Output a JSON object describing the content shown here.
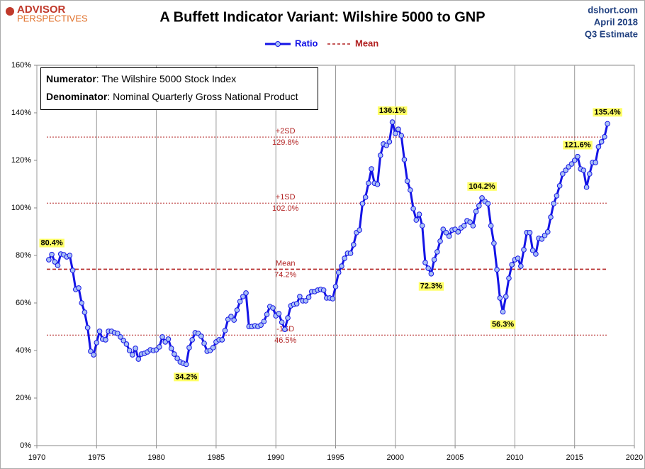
{
  "chart_data": {
    "type": "line",
    "title": "A Buffett Indicator Variant: Wilshire 5000 to GNP",
    "logo": [
      "ADVISOR",
      "PERSPECTIVES"
    ],
    "source": [
      "dshort.com",
      "April 2018",
      "Q3 Estimate"
    ],
    "notes": [
      {
        "term": "Numerator",
        "text": ": The Wilshire 5000 Stock Index"
      },
      {
        "term": "Denominator",
        "text": ": Nominal Quarterly Gross National Product"
      }
    ],
    "xlim": [
      1970,
      2020
    ],
    "xticks": [
      1970,
      1975,
      1980,
      1985,
      1990,
      1995,
      2000,
      2005,
      2010,
      2015,
      2020
    ],
    "ylim": [
      0,
      160
    ],
    "yticks": [
      {
        "value": 0,
        "label": "0%"
      },
      {
        "value": 20,
        "label": "20%"
      },
      {
        "value": 40,
        "label": "40%"
      },
      {
        "value": 60,
        "label": "60%"
      },
      {
        "value": 80,
        "label": "80%"
      },
      {
        "value": 100,
        "label": "100%"
      },
      {
        "value": 120,
        "label": "120%"
      },
      {
        "value": 140,
        "label": "140%"
      },
      {
        "value": 160,
        "label": "160%"
      }
    ],
    "grid": "x",
    "x": [
      1971,
      1971.25,
      1971.5,
      1971.75,
      1972,
      1972.25,
      1972.5,
      1972.75,
      1973,
      1973.25,
      1973.5,
      1973.75,
      1974,
      1974.25,
      1974.5,
      1974.75,
      1975,
      1975.25,
      1975.5,
      1975.75,
      1976,
      1976.25,
      1976.5,
      1976.75,
      1977,
      1977.25,
      1977.5,
      1977.75,
      1978,
      1978.25,
      1978.5,
      1978.75,
      1979,
      1979.25,
      1979.5,
      1979.75,
      1980,
      1980.25,
      1980.5,
      1980.75,
      1981,
      1981.25,
      1981.5,
      1981.75,
      1982,
      1982.25,
      1982.5,
      1982.75,
      1983,
      1983.25,
      1983.5,
      1983.75,
      1984,
      1984.25,
      1984.5,
      1984.75,
      1985,
      1985.25,
      1985.5,
      1985.75,
      1986,
      1986.25,
      1986.5,
      1986.75,
      1987,
      1987.25,
      1987.5,
      1987.75,
      1988,
      1988.25,
      1988.5,
      1988.75,
      1989,
      1989.25,
      1989.5,
      1989.75,
      1990,
      1990.25,
      1990.5,
      1990.75,
      1991,
      1991.25,
      1991.5,
      1991.75,
      1992,
      1992.25,
      1992.5,
      1992.75,
      1993,
      1993.25,
      1993.5,
      1993.75,
      1994,
      1994.25,
      1994.5,
      1994.75,
      1995,
      1995.25,
      1995.5,
      1995.75,
      1996,
      1996.25,
      1996.5,
      1996.75,
      1997,
      1997.25,
      1997.5,
      1997.75,
      1998,
      1998.25,
      1998.5,
      1998.75,
      1999,
      1999.25,
      1999.5,
      1999.75,
      2000,
      2000.25,
      2000.5,
      2000.75,
      2001,
      2001.25,
      2001.5,
      2001.75,
      2002,
      2002.25,
      2002.5,
      2002.75,
      2003,
      2003.25,
      2003.5,
      2003.75,
      2004,
      2004.25,
      2004.5,
      2004.75,
      2005,
      2005.25,
      2005.5,
      2005.75,
      2006,
      2006.25,
      2006.5,
      2006.75,
      2007,
      2007.25,
      2007.5,
      2007.75,
      2008,
      2008.25,
      2008.5,
      2008.75,
      2009,
      2009.25,
      2009.5,
      2009.75,
      2010,
      2010.25,
      2010.5,
      2010.75,
      2011,
      2011.25,
      2011.5,
      2011.75,
      2012,
      2012.25,
      2012.5,
      2012.75,
      2013,
      2013.25,
      2013.5,
      2013.75,
      2014,
      2014.25,
      2014.5,
      2014.75,
      2015,
      2015.25,
      2015.5,
      2015.75,
      2016,
      2016.25,
      2016.5,
      2016.75,
      2017,
      2017.25,
      2017.5,
      2017.75
    ],
    "series": [
      {
        "name": "Ratio",
        "color": "#1414e6",
        "marker_fill": "#a9c0f5",
        "values": [
          78.2,
          80.4,
          77.3,
          75.8,
          80.6,
          80.3,
          79.4,
          80.0,
          73.7,
          65.7,
          66.3,
          60.0,
          56.1,
          49.6,
          39.7,
          38.2,
          43.3,
          48.1,
          44.8,
          44.5,
          48.1,
          48.1,
          47.5,
          47.2,
          45.7,
          44.2,
          42.7,
          40.0,
          38.2,
          40.9,
          36.4,
          38.5,
          38.8,
          39.4,
          40.3,
          40.0,
          40.3,
          41.5,
          45.7,
          43.6,
          44.8,
          40.9,
          38.5,
          36.7,
          35.2,
          34.6,
          34.2,
          41.2,
          44.5,
          47.5,
          47.2,
          46.0,
          43.0,
          39.7,
          40.0,
          41.2,
          43.6,
          44.5,
          44.5,
          48.4,
          53.1,
          54.3,
          52.8,
          57.0,
          60.6,
          62.7,
          64.2,
          50.1,
          50.1,
          50.4,
          50.1,
          50.7,
          52.2,
          55.2,
          58.5,
          57.9,
          54.6,
          55.5,
          51.9,
          48.9,
          53.7,
          58.8,
          59.4,
          59.7,
          62.7,
          60.9,
          60.9,
          62.4,
          64.8,
          64.8,
          65.4,
          65.7,
          65.4,
          62.1,
          62.1,
          61.8,
          66.9,
          72.8,
          75.5,
          78.8,
          80.9,
          80.9,
          84.5,
          89.6,
          90.7,
          101.8,
          104.5,
          110.4,
          116.4,
          110.4,
          109.9,
          122.1,
          126.9,
          126.3,
          127.8,
          136.1,
          131.3,
          133.1,
          130.4,
          120.3,
          111.3,
          107.5,
          99.7,
          94.9,
          97.3,
          92.5,
          77.0,
          74.6,
          72.3,
          78.2,
          81.5,
          86.0,
          91.0,
          89.6,
          88.1,
          90.7,
          91.0,
          89.9,
          91.6,
          92.5,
          94.6,
          94.0,
          92.5,
          98.5,
          100.9,
          104.2,
          102.7,
          101.8,
          92.5,
          85.1,
          74.0,
          62.1,
          56.3,
          62.7,
          70.4,
          76.1,
          78.2,
          78.8,
          75.5,
          82.4,
          89.6,
          89.6,
          82.1,
          80.6,
          87.2,
          86.9,
          88.4,
          89.9,
          96.1,
          101.8,
          105.1,
          109.3,
          114.3,
          115.8,
          117.3,
          118.5,
          120.0,
          121.6,
          116.4,
          115.8,
          108.7,
          114.3,
          119.1,
          119.1,
          125.7,
          127.8,
          129.9,
          135.4
        ],
        "value_labels": [
          null,
          "80.4%",
          null,
          null,
          null,
          null,
          null,
          null,
          null,
          null,
          null,
          null,
          null,
          null,
          null,
          null,
          null,
          null,
          null,
          null,
          null,
          null,
          null,
          null,
          null,
          null,
          null,
          null,
          null,
          null,
          null,
          null,
          null,
          null,
          null,
          null,
          null,
          null,
          null,
          null,
          null,
          null,
          null,
          null,
          null,
          null,
          "34.2%",
          null,
          null,
          null,
          null,
          null,
          null,
          null,
          null,
          null,
          null,
          null,
          null,
          null,
          null,
          null,
          null,
          null,
          null,
          null,
          null,
          null,
          null,
          null,
          null,
          null,
          null,
          null,
          null,
          null,
          null,
          null,
          null,
          null,
          null,
          null,
          null,
          null,
          null,
          null,
          null,
          null,
          null,
          null,
          null,
          null,
          null,
          null,
          null,
          null,
          null,
          null,
          null,
          null,
          null,
          null,
          null,
          null,
          null,
          null,
          null,
          null,
          null,
          null,
          null,
          null,
          null,
          null,
          null,
          "136.1%",
          null,
          null,
          null,
          null,
          null,
          null,
          null,
          null,
          null,
          null,
          null,
          null,
          "72.3%",
          null,
          null,
          null,
          null,
          null,
          null,
          null,
          null,
          null,
          null,
          null,
          null,
          null,
          null,
          null,
          null,
          "104.2%",
          null,
          null,
          null,
          null,
          null,
          null,
          "56.3%",
          null,
          null,
          null,
          null,
          null,
          null,
          null,
          null,
          null,
          null,
          null,
          null,
          null,
          null,
          null,
          null,
          null,
          null,
          null,
          null,
          null,
          null,
          null,
          null,
          "121.6%",
          null,
          null,
          null,
          null,
          null,
          null,
          null,
          null,
          null,
          "135.4%"
        ]
      }
    ],
    "reference_lines": [
      {
        "name": "+2SD",
        "value": 129.8,
        "value_label": "129.8%",
        "color": "#b22222",
        "style": "dotted"
      },
      {
        "name": "+1SD",
        "value": 102.0,
        "value_label": "102.0%",
        "color": "#b22222",
        "style": "dotted"
      },
      {
        "name": "Mean",
        "value": 74.2,
        "value_label": "74.2%",
        "color": "#b22222",
        "style": "dashed"
      },
      {
        "name": "-1SD",
        "value": 46.5,
        "value_label": "46.5%",
        "color": "#b22222",
        "style": "dotted"
      }
    ]
  }
}
